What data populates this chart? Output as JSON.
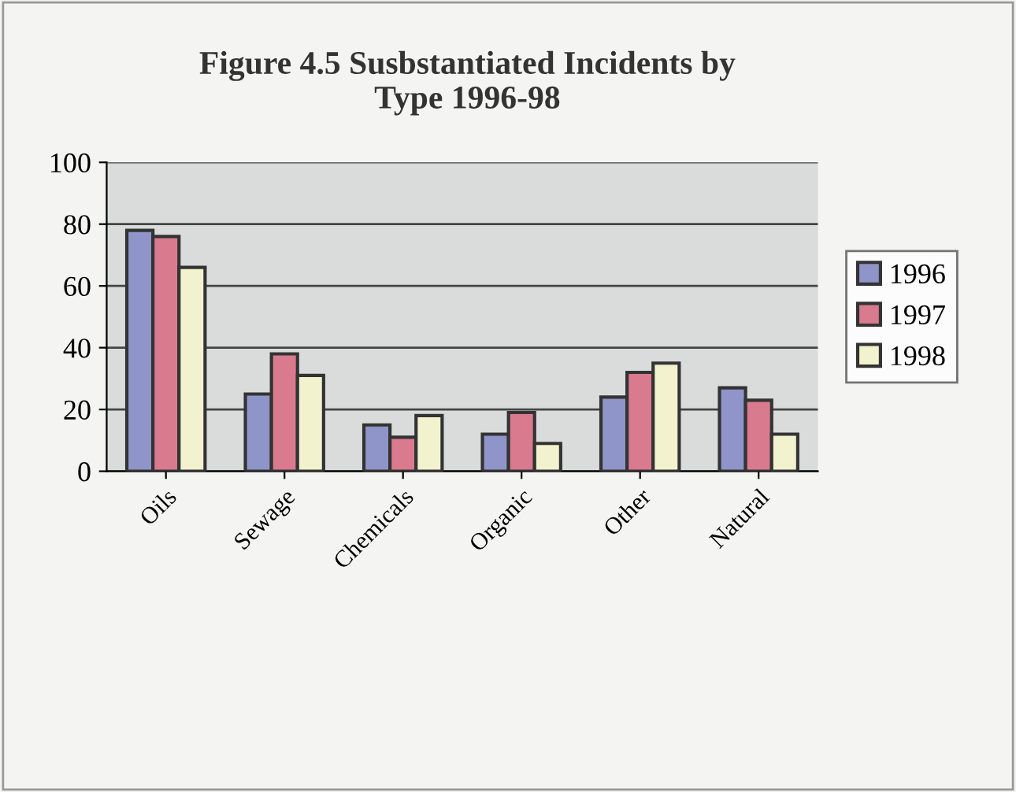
{
  "chart_data": {
    "type": "bar",
    "title": "Figure 4.5 Susbstantiated Incidents by\nType 1996-98",
    "categories": [
      "Oils",
      "Sewage",
      "Chemicals",
      "Organic",
      "Other",
      "Natural"
    ],
    "series": [
      {
        "name": "1996",
        "color": "#8f95c8",
        "values": [
          78,
          25,
          15,
          12,
          24,
          27
        ]
      },
      {
        "name": "1997",
        "color": "#d97a8e",
        "values": [
          76,
          38,
          11,
          19,
          32,
          23
        ]
      },
      {
        "name": "1998",
        "color": "#f2f2cf",
        "values": [
          66,
          31,
          18,
          9,
          35,
          12
        ]
      }
    ],
    "ylim": [
      0,
      100
    ],
    "yticks": [
      0,
      20,
      40,
      60,
      80,
      100
    ],
    "grid": "y",
    "legend": "right"
  }
}
